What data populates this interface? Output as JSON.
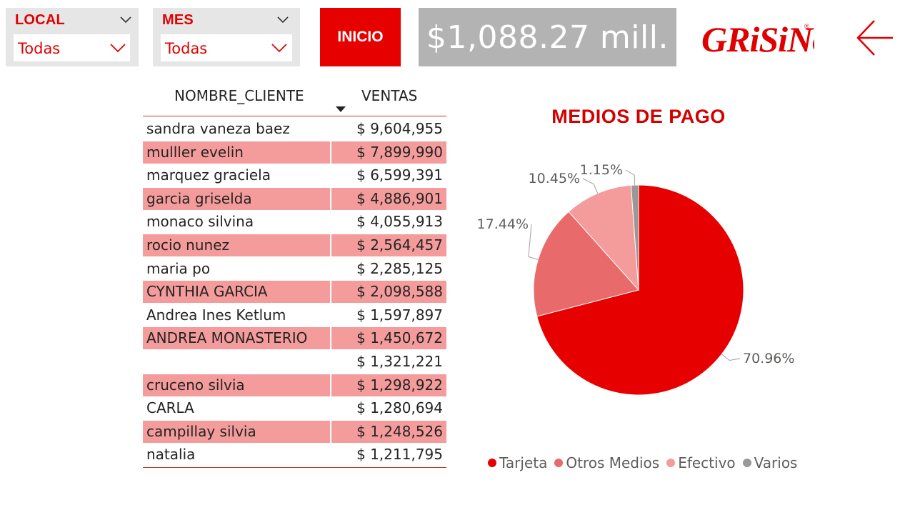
{
  "filters": [
    {
      "label": "LOCAL",
      "value": "Todas"
    },
    {
      "label": "MES",
      "value": "Todas"
    }
  ],
  "nav": {
    "inicio_label": "INICIO"
  },
  "kpi": {
    "total_sales": "$1,088.27 mill."
  },
  "brand": {
    "logo_text": "GRiSiNo",
    "logo_mark": "®"
  },
  "table": {
    "headers": [
      "NOMBRE_CLIENTE",
      "VENTAS"
    ],
    "rows": [
      {
        "name": "sandra vaneza baez",
        "sales": "$ 9,604,955"
      },
      {
        "name": "mulller evelin",
        "sales": "$ 7,899,990"
      },
      {
        "name": "marquez graciela",
        "sales": "$ 6,599,391"
      },
      {
        "name": "garcia griselda",
        "sales": "$ 4,886,901"
      },
      {
        "name": "monaco silvina",
        "sales": "$ 4,055,913"
      },
      {
        "name": "rocio nunez",
        "sales": "$ 2,564,457"
      },
      {
        "name": "maria po",
        "sales": "$ 2,285,125"
      },
      {
        "name": "CYNTHIA GARCIA",
        "sales": "$ 2,098,588"
      },
      {
        "name": "Andrea Ines Ketlum",
        "sales": "$ 1,597,897"
      },
      {
        "name": "ANDREA MONASTERIO",
        "sales": "$ 1,450,672"
      },
      {
        "name": "",
        "sales": "$ 1,321,221"
      },
      {
        "name": "cruceno silvia",
        "sales": "$ 1,298,922"
      },
      {
        "name": "CARLA",
        "sales": "$ 1,280,694"
      },
      {
        "name": "campillay silvia",
        "sales": "$ 1,248,526"
      },
      {
        "name": "natalia",
        "sales": "$ 1,211,795"
      }
    ]
  },
  "chart_data": {
    "type": "pie",
    "title": "MEDIOS DE PAGO",
    "categories": [
      "Tarjeta",
      "Otros Medios",
      "Efectivo",
      "Varios"
    ],
    "values": [
      70.96,
      17.44,
      10.45,
      1.15
    ],
    "labels": [
      "70.96%",
      "17.44%",
      "10.45%",
      "1.15%"
    ],
    "colors": [
      "#e60000",
      "#e86a6a",
      "#f49c9c",
      "#999999"
    ],
    "legend_position": "bottom"
  },
  "colors": {
    "accent": "#e60000",
    "kpi_bg": "#b3b3b3",
    "row_alt": "#f49c9c"
  }
}
